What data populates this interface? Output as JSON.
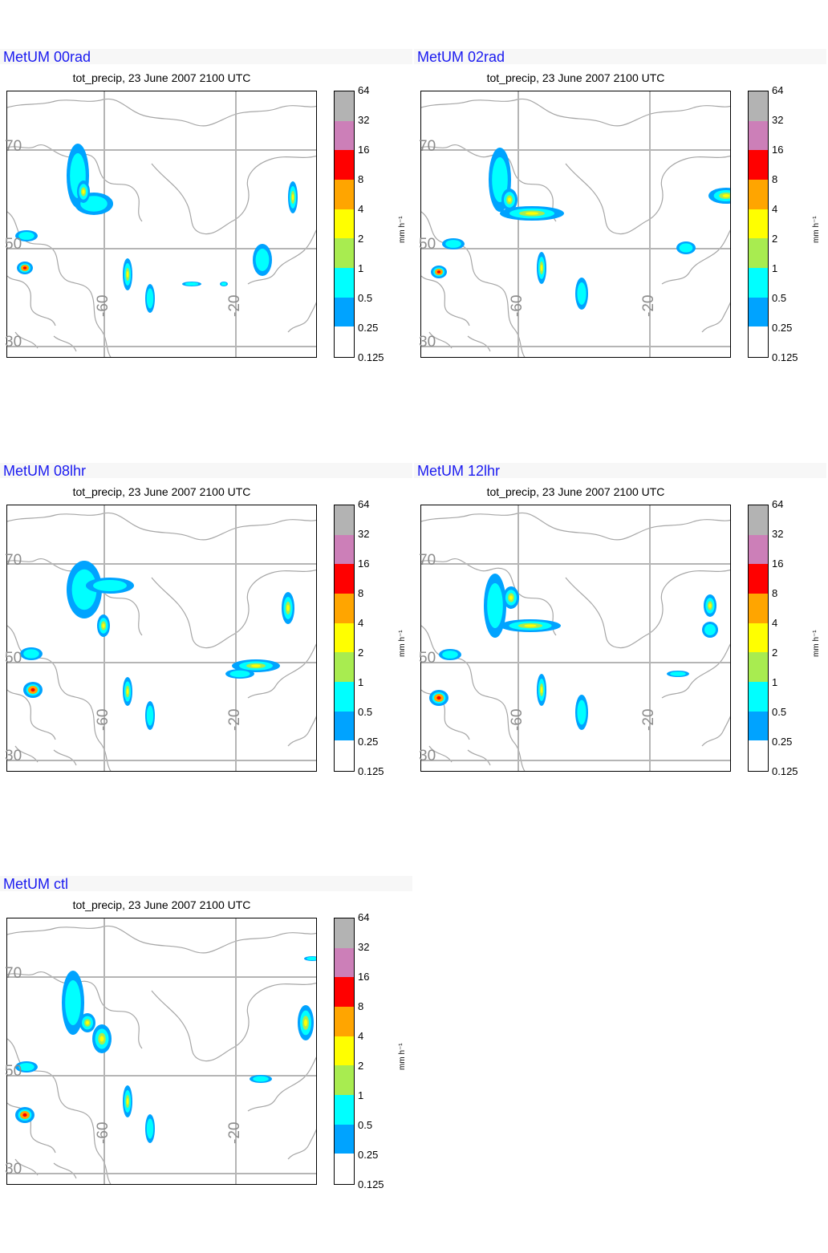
{
  "panels": [
    {
      "title": "MetUM 00rad",
      "subtitle": "tot_precip, 23 June 2007 2100 UTC",
      "variant": 0
    },
    {
      "title": "MetUM 02rad",
      "subtitle": "tot_precip, 23 June 2007 2100 UTC",
      "variant": 1
    },
    {
      "title": "MetUM 08lhr",
      "subtitle": "tot_precip, 23 June 2007 2100 UTC",
      "variant": 2
    },
    {
      "title": "MetUM 12lhr",
      "subtitle": "tot_precip, 23 June 2007 2100 UTC",
      "variant": 3
    },
    {
      "title": "MetUM ctl",
      "subtitle": "tot_precip, 23 June 2007 2100 UTC",
      "variant": 4
    }
  ],
  "colorbar": {
    "unit": "mm h⁻¹",
    "ticks": [
      "64",
      "32",
      "16",
      "8",
      "4",
      "2",
      "1",
      "0.5",
      "0.25",
      "0.125"
    ],
    "colors": [
      "#b3b3b3",
      "#cc7fb8",
      "#ff0000",
      "#ffa500",
      "#ffff00",
      "#a8ec50",
      "#00ffff",
      "#00a3ff",
      "#ffffff"
    ]
  },
  "grid_labels": {
    "lat": [
      "70",
      "50",
      "30"
    ],
    "lon": [
      "-60",
      "-20"
    ]
  },
  "colors": {
    "title": "#1a1af0",
    "coast": "#a6a6a6",
    "grid": "#b5b5b5"
  }
}
